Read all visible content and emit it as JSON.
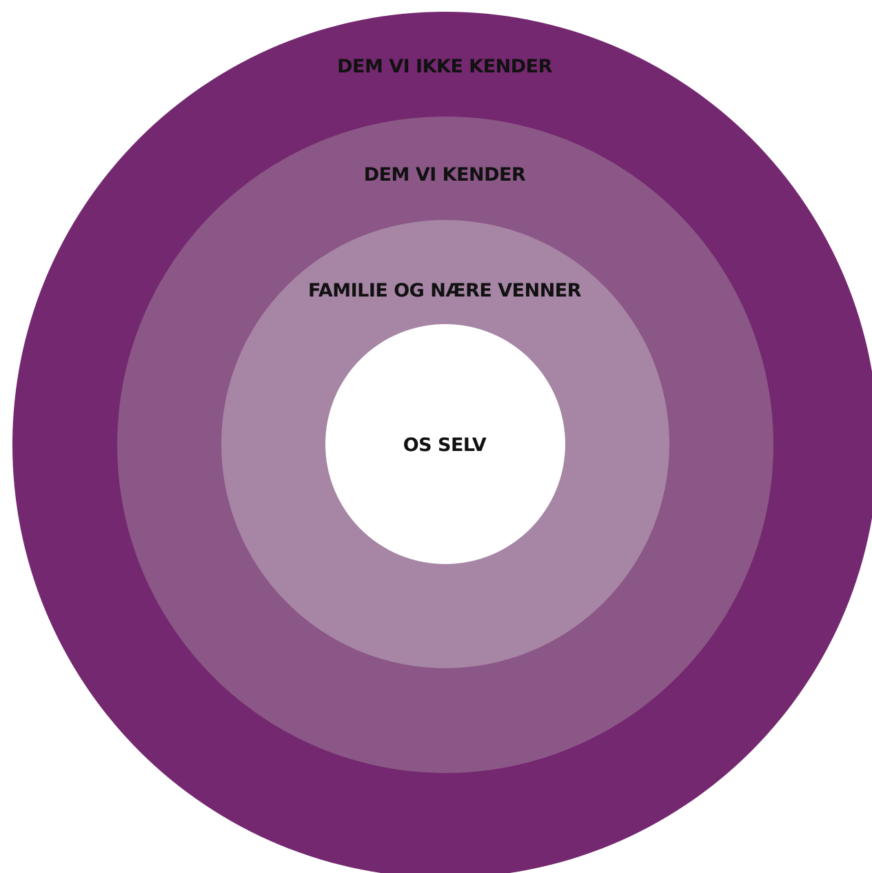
{
  "diagram": {
    "type": "concentric-circles",
    "layers": [
      {
        "label": "DEM VI IKKE KENDER",
        "color": "#74286f"
      },
      {
        "label": "DEM VI KENDER",
        "color": "#8b5787"
      },
      {
        "label": "FAMILIE OG NÆRE VENNER",
        "color": "#a785a5"
      },
      {
        "label": "OS SELV",
        "color": "#ffffff"
      }
    ]
  }
}
